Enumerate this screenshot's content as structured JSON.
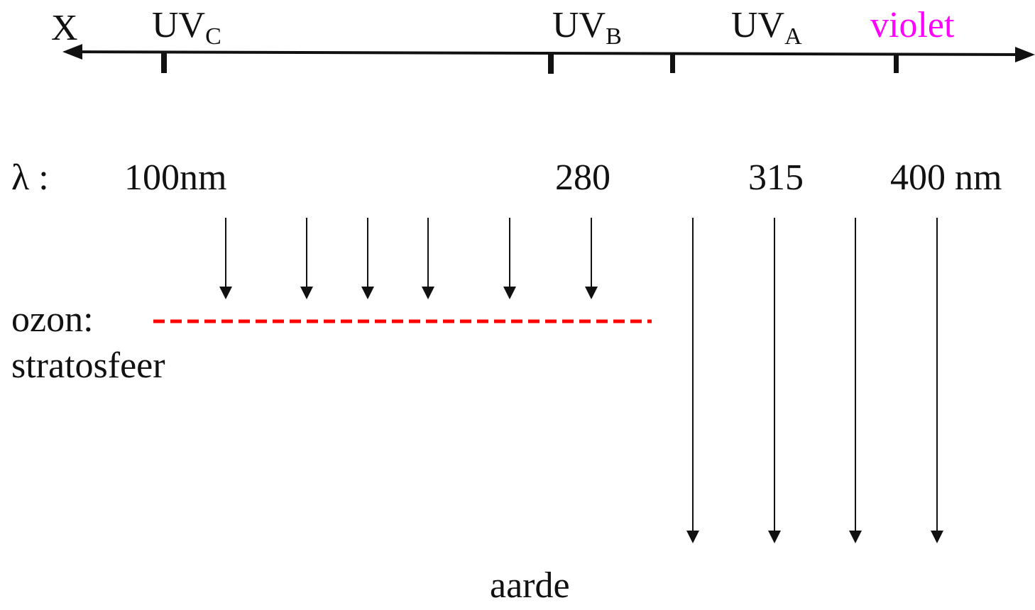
{
  "spectrum": {
    "x_label": "X",
    "uvc": {
      "main": "UV",
      "sub": "C"
    },
    "uvb": {
      "main": "UV",
      "sub": "B"
    },
    "uva": {
      "main": "UV",
      "sub": "A"
    },
    "violet": "violet",
    "violet_color": "#ff00ff"
  },
  "wavelengths": {
    "lambda_label": "λ :",
    "w100": "100nm",
    "w280": "280",
    "w315": "315",
    "w400": "400 nm"
  },
  "atmosphere": {
    "ozon_label": "ozon:",
    "stratosfeer_label": "stratosfeer",
    "ozone_line_color": "#ff0000",
    "aarde_label": "aarde"
  }
}
